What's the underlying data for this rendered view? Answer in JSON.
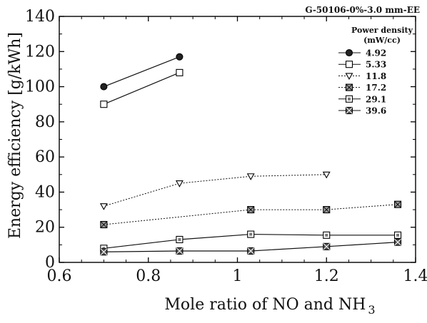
{
  "chart_data": {
    "type": "line",
    "title": "G-50106-0%-3.0 mm-EE",
    "xlabel_main": "Mole ratio of NO and NH",
    "xlabel_sub": "3",
    "ylabel": "Energy efficiency [g/kWh]",
    "xlim": [
      0.6,
      1.4
    ],
    "ylim": [
      0,
      140
    ],
    "x_ticks": [
      "0.6",
      "0.8",
      "1",
      "1.2",
      "1.4"
    ],
    "y_ticks": [
      "0",
      "20",
      "40",
      "60",
      "80",
      "100",
      "120",
      "140"
    ],
    "grid": false,
    "legend_title_line1": "Power density",
    "legend_title_line2": "(mW/cc)",
    "legend_position": "top-right",
    "series": [
      {
        "name": "4.92",
        "marker": "circle-filled",
        "line": "solid",
        "points": [
          [
            0.7,
            100
          ],
          [
            0.87,
            117
          ]
        ]
      },
      {
        "name": "5.33",
        "marker": "square-open",
        "line": "solid",
        "points": [
          [
            0.7,
            90
          ],
          [
            0.87,
            108
          ]
        ]
      },
      {
        "name": "11.8",
        "marker": "triangle-down",
        "line": "dotted",
        "points": [
          [
            0.7,
            32
          ],
          [
            0.87,
            45
          ],
          [
            1.03,
            49
          ],
          [
            1.2,
            50
          ]
        ]
      },
      {
        "name": "17.2",
        "marker": "square-cross",
        "line": "dotted",
        "points": [
          [
            0.7,
            21.5
          ],
          [
            1.03,
            30
          ],
          [
            1.2,
            30
          ],
          [
            1.36,
            33
          ]
        ]
      },
      {
        "name": "29.1",
        "marker": "square-dotted",
        "line": "solid",
        "points": [
          [
            0.7,
            8
          ],
          [
            0.87,
            13
          ],
          [
            1.03,
            16
          ],
          [
            1.2,
            15.5
          ],
          [
            1.36,
            15.5
          ]
        ]
      },
      {
        "name": "39.6",
        "marker": "square-x",
        "line": "solid",
        "points": [
          [
            0.7,
            6
          ],
          [
            0.87,
            6.5
          ],
          [
            1.03,
            6.5
          ],
          [
            1.2,
            9
          ],
          [
            1.36,
            11.5
          ]
        ]
      }
    ]
  }
}
